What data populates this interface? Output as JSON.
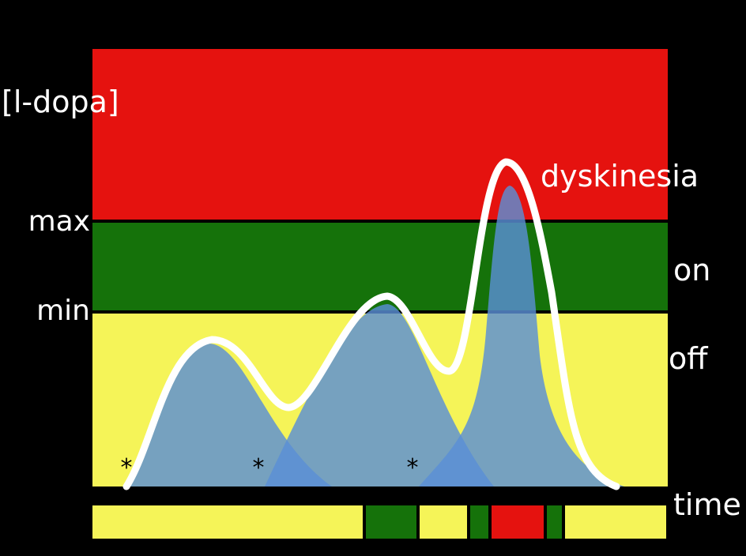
{
  "labels": {
    "y_axis": "[l-dopa]",
    "max": "max",
    "min": "min",
    "x_axis": "time"
  },
  "zones": [
    {
      "name": "dyskinesia",
      "color": "#e5120f"
    },
    {
      "name": "on",
      "color": "#15720a"
    },
    {
      "name": "off",
      "color": "#f5f458"
    }
  ],
  "dose_marker": "*",
  "colors": {
    "background": "#000000",
    "dose_curve": "#5a8fd6",
    "overlap": "#3f7fe0",
    "total_curve": "#ffffff"
  },
  "timeline_states": [
    "off",
    "on",
    "off",
    "on",
    "dyskinesia",
    "on",
    "off"
  ]
}
